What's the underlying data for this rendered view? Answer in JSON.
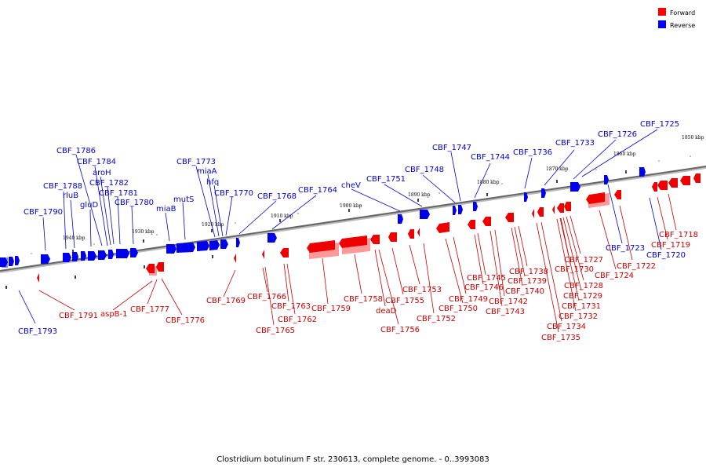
{
  "legend": {
    "forward": {
      "label": "Forward",
      "color": "#ff0000"
    },
    "reverse": {
      "label": "Reverse",
      "color": "#0000ff"
    }
  },
  "caption": "Clostridium botulinum F str. 230613, complete genome. - 0..3993083",
  "ticks": [
    "1940 kbp",
    "1930 kbp",
    "1920 kbp",
    "1910 kbp",
    "1900 kbp",
    "1890 kbp",
    "1880 kbp",
    "1870 kbp",
    "1860 kbp",
    "1850 kbp"
  ],
  "reverse_genes": [
    "CBF_1786",
    "CBF_1784",
    "aroH",
    "CBF_1782",
    "CBF_1788",
    "rluB",
    "CBF_1781",
    "gluD",
    "CBF_1780",
    "CBF_1790",
    "CBF_1773",
    "miaA",
    "hfq",
    "CBF_1770",
    "mutS",
    "miaB",
    "CBF_1768",
    "CBF_1764",
    "cheV",
    "CBF_1751",
    "CBF_1748",
    "CBF_1747",
    "CBF_1744",
    "CBF_1736",
    "CBF_1733",
    "CBF_1726",
    "CBF_1725",
    "CBF_1723",
    "CBF_1720",
    "CBF_1793"
  ],
  "forward_genes": [
    "CBF_1791",
    "aspB-1",
    "CBF_1777",
    "CBF_1776",
    "CBF_1769",
    "CBF_1766",
    "CBF_1765",
    "CBF_1763",
    "CBF_1762",
    "CBF_1759",
    "CBF_1758",
    "deaD",
    "CBF_1756",
    "CBF_1755",
    "CBF_1753",
    "CBF_1752",
    "CBF_1750",
    "CBF_1749",
    "CBF_1746",
    "CBF_1745",
    "CBF_1743",
    "CBF_1742",
    "CBF_1740",
    "CBF_1739",
    "CBF_1738",
    "CBF_1735",
    "CBF_1734",
    "CBF_1732",
    "CBF_1731",
    "CBF_1729",
    "CBF_1728",
    "CBF_1730",
    "CBF_1727",
    "CBF_1724",
    "CBF_1722",
    "CBF_1719",
    "CBF_1718"
  ]
}
